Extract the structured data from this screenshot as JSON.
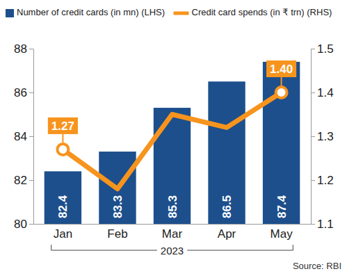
{
  "chart_data": {
    "type": "bar",
    "categories": [
      "Jan",
      "Feb",
      "Mar",
      "Apr",
      "May"
    ],
    "series": [
      {
        "name": "Number of credit cards (in mn) (LHS)",
        "type": "bar",
        "color": "#1d4f8c",
        "values": [
          82.4,
          83.3,
          85.3,
          86.5,
          87.4
        ]
      },
      {
        "name": "Credit card spends (in ₹ trn) (RHS)",
        "type": "line",
        "axis": "y2",
        "color": "#f7941d",
        "marker": "circle",
        "values": [
          1.27,
          1.18,
          1.35,
          1.32,
          1.4
        ],
        "value_labels": [
          "1.27",
          null,
          null,
          null,
          "1.40"
        ]
      }
    ],
    "ylim": [
      80,
      88
    ],
    "yticks": [
      80,
      82,
      84,
      86,
      88
    ],
    "y2lim": [
      1.1,
      1.5
    ],
    "y2ticks": [
      1.1,
      1.2,
      1.3,
      1.4,
      1.5
    ],
    "data_labels": true,
    "grid": false,
    "legend": "top",
    "annotations": [
      "2023"
    ],
    "source": "Source: RBI"
  }
}
